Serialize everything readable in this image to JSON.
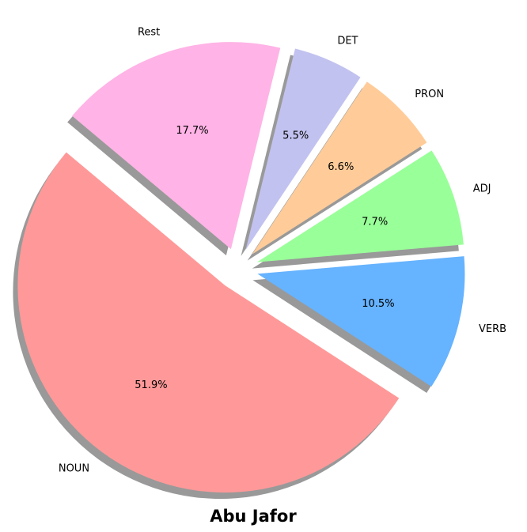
{
  "chart_data": {
    "type": "pie",
    "title": "Abu Jafor",
    "categories": [
      "NOUN",
      "VERB",
      "ADJ",
      "PRON",
      "DET",
      "Rest"
    ],
    "values": [
      51.9,
      10.5,
      7.7,
      6.6,
      5.5,
      17.7
    ],
    "labels": [
      "51.9%",
      "10.5%",
      "7.7%",
      "6.6%",
      "5.5%",
      "17.7%"
    ],
    "colors": [
      "#ff9999",
      "#66b3ff",
      "#99ff99",
      "#ffcc99",
      "#c2c2f0",
      "#ffb3e6"
    ],
    "exploded": [
      true,
      true,
      true,
      true,
      true,
      true
    ],
    "shadow": true,
    "start_angle": 140,
    "direction": "counterclockwise"
  }
}
